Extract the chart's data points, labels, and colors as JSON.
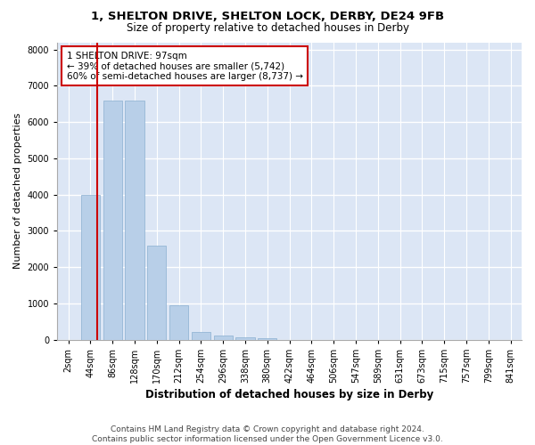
{
  "title1": "1, SHELTON DRIVE, SHELTON LOCK, DERBY, DE24 9FB",
  "title2": "Size of property relative to detached houses in Derby",
  "xlabel": "Distribution of detached houses by size in Derby",
  "ylabel": "Number of detached properties",
  "bar_color": "#b8cfe8",
  "bar_edge_color": "#8aafd0",
  "bg_color": "#dce6f5",
  "grid_color": "#ffffff",
  "categories": [
    "2sqm",
    "44sqm",
    "86sqm",
    "128sqm",
    "170sqm",
    "212sqm",
    "254sqm",
    "296sqm",
    "338sqm",
    "380sqm",
    "422sqm",
    "464sqm",
    "506sqm",
    "547sqm",
    "589sqm",
    "631sqm",
    "673sqm",
    "715sqm",
    "757sqm",
    "799sqm",
    "841sqm"
  ],
  "values": [
    0,
    4000,
    6600,
    6600,
    2600,
    950,
    200,
    100,
    50,
    30,
    0,
    0,
    0,
    0,
    0,
    0,
    0,
    0,
    0,
    0,
    0
  ],
  "ylim": [
    0,
    8200
  ],
  "yticks": [
    0,
    1000,
    2000,
    3000,
    4000,
    5000,
    6000,
    7000,
    8000
  ],
  "property_line_color": "#cc0000",
  "line_x_index": 1.3,
  "annotation_text": "1 SHELTON DRIVE: 97sqm\n← 39% of detached houses are smaller (5,742)\n60% of semi-detached houses are larger (8,737) →",
  "annotation_box_color": "#cc0000",
  "footnote": "Contains HM Land Registry data © Crown copyright and database right 2024.\nContains public sector information licensed under the Open Government Licence v3.0.",
  "title1_fontsize": 9.5,
  "title2_fontsize": 8.5,
  "xlabel_fontsize": 8.5,
  "ylabel_fontsize": 8,
  "tick_fontsize": 7,
  "annotation_fontsize": 7.5,
  "footnote_fontsize": 6.5
}
